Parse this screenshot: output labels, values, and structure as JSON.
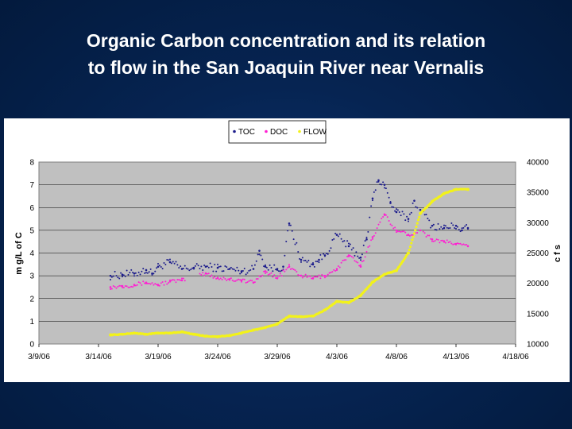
{
  "slide": {
    "title_line1": "Organic Carbon concentration and its relation",
    "title_line2": "to flow in the San Joaquin River near Vernalis"
  },
  "chart_data": {
    "type": "scatter",
    "title": "",
    "xlabel": "",
    "ylabel": "m g/L of C",
    "y2label": "c f s",
    "x_ticks": [
      "3/9/06",
      "3/14/06",
      "3/19/06",
      "3/24/06",
      "3/29/06",
      "4/3/06",
      "4/8/06",
      "4/13/06",
      "4/18/06"
    ],
    "xlim": [
      "2006-03-09",
      "2006-04-18"
    ],
    "ylim": [
      0,
      8
    ],
    "y_ticks": [
      "0",
      "1",
      "2",
      "3",
      "4",
      "5",
      "6",
      "7",
      "8"
    ],
    "y2lim": [
      10000,
      40000
    ],
    "y2_ticks": [
      "10000",
      "15000",
      "20000",
      "25000",
      "30000",
      "35000",
      "40000"
    ],
    "grid": "horizontal",
    "legend_position": "top",
    "plot_background": "#c0c0c0",
    "series": [
      {
        "name": "TOC",
        "axis": "left",
        "color": "#1c1c8c",
        "x": [
          "2006-03-15",
          "2006-03-16",
          "2006-03-17",
          "2006-03-18",
          "2006-03-18T12:00",
          "2006-03-19",
          "2006-03-20",
          "2006-03-21",
          "2006-03-22",
          "2006-03-23",
          "2006-03-24",
          "2006-03-25",
          "2006-03-26",
          "2006-03-27",
          "2006-03-27T12:00",
          "2006-03-28",
          "2006-03-29",
          "2006-03-29T12:00",
          "2006-03-30",
          "2006-03-31",
          "2006-04-01",
          "2006-04-01T12:00",
          "2006-04-02",
          "2006-04-03",
          "2006-04-04",
          "2006-04-05",
          "2006-04-05T12:00",
          "2006-04-06",
          "2006-04-06T12:00",
          "2006-04-07",
          "2006-04-07T12:00",
          "2006-04-08",
          "2006-04-09",
          "2006-04-09T12:00",
          "2006-04-10",
          "2006-04-11",
          "2006-04-12",
          "2006-04-13",
          "2006-04-13T12:00",
          "2006-04-14"
        ],
        "y": [
          3.0,
          3.05,
          3.1,
          3.25,
          3.1,
          3.4,
          3.6,
          3.3,
          3.35,
          3.4,
          3.35,
          3.3,
          3.2,
          3.3,
          4.1,
          3.4,
          3.3,
          3.4,
          5.3,
          3.7,
          3.5,
          3.7,
          3.9,
          4.8,
          4.3,
          3.8,
          4.6,
          6.4,
          7.2,
          7.0,
          6.2,
          5.8,
          5.5,
          6.3,
          5.9,
          5.2,
          5.1,
          5.2,
          5.0,
          5.1
        ]
      },
      {
        "name": "DOC",
        "axis": "left",
        "color": "#ff1fd2",
        "x": [
          "2006-03-15",
          "2006-03-16",
          "2006-03-17",
          "2006-03-18",
          "2006-03-19",
          "2006-03-20",
          "2006-03-21",
          "2006-03-23",
          "2006-03-24",
          "2006-03-25",
          "2006-03-26",
          "2006-03-27",
          "2006-03-28",
          "2006-03-29",
          "2006-03-30",
          "2006-03-31",
          "2006-04-01",
          "2006-04-02",
          "2006-04-03",
          "2006-04-04",
          "2006-04-05",
          "2006-04-06",
          "2006-04-07",
          "2006-04-08",
          "2006-04-09",
          "2006-04-10",
          "2006-04-11",
          "2006-04-12",
          "2006-04-13",
          "2006-04-14"
        ],
        "y": [
          2.5,
          2.55,
          2.6,
          2.7,
          2.6,
          2.75,
          2.8,
          3.1,
          2.9,
          2.85,
          2.8,
          2.7,
          3.2,
          2.9,
          3.4,
          3.0,
          2.9,
          3.0,
          3.3,
          3.9,
          3.4,
          4.7,
          5.7,
          5.0,
          4.8,
          5.0,
          4.6,
          4.5,
          4.4,
          4.3
        ]
      },
      {
        "name": "FLOW",
        "axis": "right",
        "color": "#f2f21a",
        "x": [
          "2006-03-15",
          "2006-03-16",
          "2006-03-17",
          "2006-03-18",
          "2006-03-19",
          "2006-03-20",
          "2006-03-21",
          "2006-03-22",
          "2006-03-23",
          "2006-03-24",
          "2006-03-25",
          "2006-03-26",
          "2006-03-27",
          "2006-03-28",
          "2006-03-29",
          "2006-03-30",
          "2006-03-31",
          "2006-04-01",
          "2006-04-02",
          "2006-04-03",
          "2006-04-04",
          "2006-04-05",
          "2006-04-06",
          "2006-04-07",
          "2006-04-08",
          "2006-04-09",
          "2006-04-10",
          "2006-04-11",
          "2006-04-12",
          "2006-04-13",
          "2006-04-14"
        ],
        "y": [
          11500,
          11600,
          11800,
          11600,
          11800,
          11800,
          12000,
          11600,
          11300,
          11200,
          11400,
          11800,
          12300,
          12700,
          13300,
          14600,
          14500,
          14600,
          15600,
          17000,
          16800,
          18000,
          20200,
          21500,
          22100,
          25000,
          31500,
          33500,
          34800,
          35500,
          35500
        ]
      }
    ]
  }
}
